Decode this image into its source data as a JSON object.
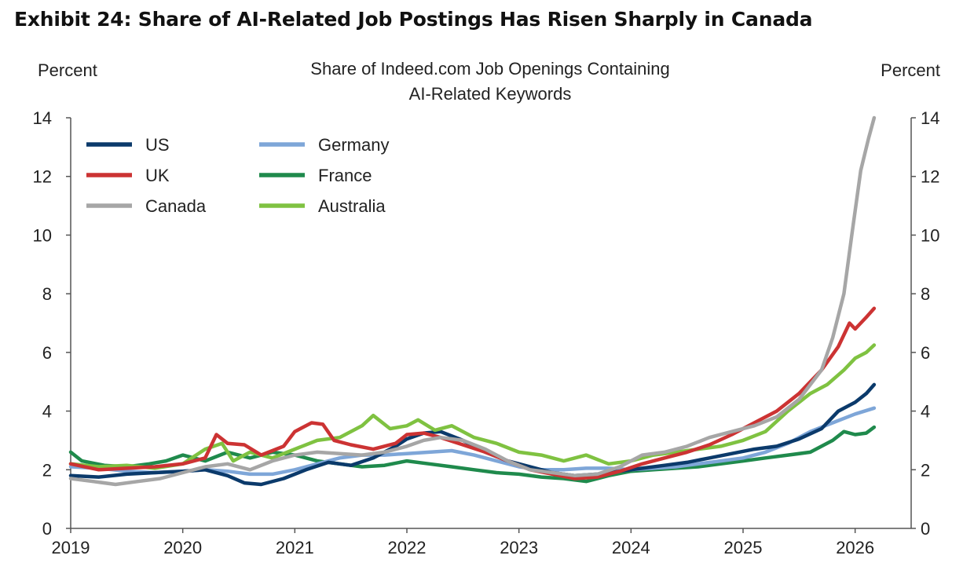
{
  "exhibit_title": "Exhibit 24: Share of AI-Related Job Postings Has Risen Sharply in Canada",
  "chart_data": {
    "type": "line",
    "title": "Share of Indeed.com Job Openings Containing AI-Related Keywords",
    "title_lines": [
      "Share of Indeed.com Job Openings Containing",
      "AI-Related Keywords"
    ],
    "left_ylabel": "Percent",
    "right_ylabel": "Percent",
    "xlabel": "",
    "xlim": [
      2019,
      2026.5
    ],
    "ylim": [
      0,
      14
    ],
    "x_ticks": [
      2019,
      2020,
      2021,
      2022,
      2023,
      2024,
      2025,
      2026
    ],
    "x_tick_labels": [
      "2019",
      "2020",
      "2021",
      "2022",
      "2023",
      "2024",
      "2025",
      "2026"
    ],
    "y_ticks": [
      0,
      2,
      4,
      6,
      8,
      10,
      12,
      14
    ],
    "y_tick_labels": [
      "0",
      "2",
      "4",
      "6",
      "8",
      "10",
      "12",
      "14"
    ],
    "grid": false,
    "legend_position": "top-left",
    "series": [
      {
        "name": "US",
        "color": "#0b3a6b",
        "points": [
          [
            2019.0,
            1.8
          ],
          [
            2019.25,
            1.75
          ],
          [
            2019.5,
            1.85
          ],
          [
            2019.75,
            1.9
          ],
          [
            2020.0,
            1.95
          ],
          [
            2020.2,
            2.0
          ],
          [
            2020.4,
            1.8
          ],
          [
            2020.55,
            1.55
          ],
          [
            2020.7,
            1.5
          ],
          [
            2020.9,
            1.7
          ],
          [
            2021.1,
            2.0
          ],
          [
            2021.3,
            2.25
          ],
          [
            2021.5,
            2.15
          ],
          [
            2021.7,
            2.4
          ],
          [
            2021.9,
            2.8
          ],
          [
            2022.0,
            3.05
          ],
          [
            2022.15,
            3.25
          ],
          [
            2022.3,
            3.3
          ],
          [
            2022.5,
            3.0
          ],
          [
            2022.7,
            2.6
          ],
          [
            2022.9,
            2.3
          ],
          [
            2023.1,
            2.1
          ],
          [
            2023.3,
            1.9
          ],
          [
            2023.5,
            1.8
          ],
          [
            2023.7,
            1.85
          ],
          [
            2023.9,
            1.95
          ],
          [
            2024.1,
            2.05
          ],
          [
            2024.3,
            2.15
          ],
          [
            2024.5,
            2.25
          ],
          [
            2024.7,
            2.4
          ],
          [
            2024.9,
            2.55
          ],
          [
            2025.1,
            2.7
          ],
          [
            2025.3,
            2.8
          ],
          [
            2025.5,
            3.05
          ],
          [
            2025.7,
            3.4
          ],
          [
            2025.85,
            4.0
          ],
          [
            2026.0,
            4.3
          ],
          [
            2026.1,
            4.6
          ],
          [
            2026.17,
            4.9
          ]
        ]
      },
      {
        "name": "UK",
        "color": "#cc3333",
        "points": [
          [
            2019.0,
            2.2
          ],
          [
            2019.25,
            2.0
          ],
          [
            2019.5,
            2.05
          ],
          [
            2019.75,
            2.1
          ],
          [
            2020.0,
            2.2
          ],
          [
            2020.2,
            2.4
          ],
          [
            2020.3,
            3.2
          ],
          [
            2020.4,
            2.9
          ],
          [
            2020.55,
            2.85
          ],
          [
            2020.7,
            2.5
          ],
          [
            2020.9,
            2.8
          ],
          [
            2021.0,
            3.3
          ],
          [
            2021.15,
            3.6
          ],
          [
            2021.25,
            3.55
          ],
          [
            2021.35,
            3.0
          ],
          [
            2021.5,
            2.85
          ],
          [
            2021.7,
            2.7
          ],
          [
            2021.9,
            2.9
          ],
          [
            2022.0,
            3.2
          ],
          [
            2022.15,
            3.25
          ],
          [
            2022.3,
            3.1
          ],
          [
            2022.5,
            2.85
          ],
          [
            2022.7,
            2.6
          ],
          [
            2022.9,
            2.3
          ],
          [
            2023.1,
            2.0
          ],
          [
            2023.3,
            1.85
          ],
          [
            2023.5,
            1.7
          ],
          [
            2023.7,
            1.75
          ],
          [
            2023.9,
            1.95
          ],
          [
            2024.1,
            2.2
          ],
          [
            2024.3,
            2.4
          ],
          [
            2024.5,
            2.6
          ],
          [
            2024.7,
            2.85
          ],
          [
            2024.9,
            3.2
          ],
          [
            2025.1,
            3.6
          ],
          [
            2025.3,
            4.0
          ],
          [
            2025.5,
            4.6
          ],
          [
            2025.7,
            5.4
          ],
          [
            2025.85,
            6.2
          ],
          [
            2025.95,
            7.0
          ],
          [
            2026.0,
            6.8
          ],
          [
            2026.1,
            7.2
          ],
          [
            2026.17,
            7.5
          ]
        ]
      },
      {
        "name": "Canada",
        "color": "#a6a6a6",
        "points": [
          [
            2019.0,
            1.7
          ],
          [
            2019.2,
            1.6
          ],
          [
            2019.4,
            1.5
          ],
          [
            2019.6,
            1.6
          ],
          [
            2019.8,
            1.7
          ],
          [
            2020.0,
            1.9
          ],
          [
            2020.2,
            2.1
          ],
          [
            2020.4,
            2.2
          ],
          [
            2020.6,
            2.0
          ],
          [
            2020.8,
            2.3
          ],
          [
            2021.0,
            2.5
          ],
          [
            2021.2,
            2.6
          ],
          [
            2021.4,
            2.55
          ],
          [
            2021.6,
            2.5
          ],
          [
            2021.8,
            2.6
          ],
          [
            2022.0,
            2.8
          ],
          [
            2022.15,
            3.0
          ],
          [
            2022.3,
            3.1
          ],
          [
            2022.5,
            3.0
          ],
          [
            2022.7,
            2.7
          ],
          [
            2022.9,
            2.3
          ],
          [
            2023.1,
            2.0
          ],
          [
            2023.3,
            1.9
          ],
          [
            2023.5,
            1.8
          ],
          [
            2023.7,
            1.85
          ],
          [
            2023.9,
            2.1
          ],
          [
            2024.1,
            2.5
          ],
          [
            2024.3,
            2.6
          ],
          [
            2024.5,
            2.8
          ],
          [
            2024.7,
            3.1
          ],
          [
            2024.9,
            3.3
          ],
          [
            2025.1,
            3.5
          ],
          [
            2025.3,
            3.8
          ],
          [
            2025.5,
            4.4
          ],
          [
            2025.7,
            5.4
          ],
          [
            2025.8,
            6.5
          ],
          [
            2025.9,
            8.0
          ],
          [
            2025.97,
            10.0
          ],
          [
            2026.05,
            12.2
          ],
          [
            2026.12,
            13.3
          ],
          [
            2026.17,
            14.0
          ]
        ]
      },
      {
        "name": "Germany",
        "color": "#7ea6d8",
        "points": [
          [
            2019.0,
            2.1
          ],
          [
            2019.25,
            2.05
          ],
          [
            2019.5,
            1.95
          ],
          [
            2019.75,
            1.9
          ],
          [
            2020.0,
            1.95
          ],
          [
            2020.2,
            2.0
          ],
          [
            2020.4,
            1.95
          ],
          [
            2020.6,
            1.85
          ],
          [
            2020.8,
            1.85
          ],
          [
            2021.0,
            2.0
          ],
          [
            2021.2,
            2.2
          ],
          [
            2021.4,
            2.4
          ],
          [
            2021.6,
            2.5
          ],
          [
            2021.8,
            2.5
          ],
          [
            2022.0,
            2.55
          ],
          [
            2022.2,
            2.6
          ],
          [
            2022.4,
            2.65
          ],
          [
            2022.6,
            2.5
          ],
          [
            2022.8,
            2.3
          ],
          [
            2023.0,
            2.1
          ],
          [
            2023.2,
            2.0
          ],
          [
            2023.4,
            2.0
          ],
          [
            2023.6,
            2.05
          ],
          [
            2023.8,
            2.05
          ],
          [
            2024.0,
            2.0
          ],
          [
            2024.2,
            2.05
          ],
          [
            2024.4,
            2.1
          ],
          [
            2024.6,
            2.2
          ],
          [
            2024.8,
            2.3
          ],
          [
            2025.0,
            2.4
          ],
          [
            2025.2,
            2.6
          ],
          [
            2025.4,
            2.9
          ],
          [
            2025.6,
            3.3
          ],
          [
            2025.8,
            3.6
          ],
          [
            2026.0,
            3.9
          ],
          [
            2026.17,
            4.1
          ]
        ]
      },
      {
        "name": "France",
        "color": "#1f8a4c",
        "points": [
          [
            2019.0,
            2.6
          ],
          [
            2019.1,
            2.3
          ],
          [
            2019.3,
            2.15
          ],
          [
            2019.5,
            2.1
          ],
          [
            2019.7,
            2.2
          ],
          [
            2019.85,
            2.3
          ],
          [
            2020.0,
            2.5
          ],
          [
            2020.2,
            2.3
          ],
          [
            2020.4,
            2.6
          ],
          [
            2020.6,
            2.4
          ],
          [
            2020.8,
            2.6
          ],
          [
            2021.0,
            2.5
          ],
          [
            2021.2,
            2.3
          ],
          [
            2021.4,
            2.2
          ],
          [
            2021.6,
            2.1
          ],
          [
            2021.8,
            2.15
          ],
          [
            2022.0,
            2.3
          ],
          [
            2022.2,
            2.2
          ],
          [
            2022.4,
            2.1
          ],
          [
            2022.6,
            2.0
          ],
          [
            2022.8,
            1.9
          ],
          [
            2023.0,
            1.85
          ],
          [
            2023.2,
            1.75
          ],
          [
            2023.4,
            1.7
          ],
          [
            2023.6,
            1.6
          ],
          [
            2023.8,
            1.8
          ],
          [
            2024.0,
            1.95
          ],
          [
            2024.2,
            2.0
          ],
          [
            2024.4,
            2.05
          ],
          [
            2024.6,
            2.1
          ],
          [
            2024.8,
            2.2
          ],
          [
            2025.0,
            2.3
          ],
          [
            2025.2,
            2.4
          ],
          [
            2025.4,
            2.5
          ],
          [
            2025.6,
            2.6
          ],
          [
            2025.8,
            3.0
          ],
          [
            2025.9,
            3.3
          ],
          [
            2026.0,
            3.2
          ],
          [
            2026.1,
            3.25
          ],
          [
            2026.17,
            3.45
          ]
        ]
      },
      {
        "name": "Australia",
        "color": "#7fc241",
        "points": [
          [
            2019.0,
            2.2
          ],
          [
            2019.25,
            2.1
          ],
          [
            2019.5,
            2.15
          ],
          [
            2019.75,
            2.05
          ],
          [
            2020.0,
            2.2
          ],
          [
            2020.2,
            2.7
          ],
          [
            2020.35,
            2.9
          ],
          [
            2020.45,
            2.3
          ],
          [
            2020.6,
            2.6
          ],
          [
            2020.8,
            2.4
          ],
          [
            2021.0,
            2.7
          ],
          [
            2021.2,
            3.0
          ],
          [
            2021.4,
            3.1
          ],
          [
            2021.6,
            3.5
          ],
          [
            2021.7,
            3.85
          ],
          [
            2021.85,
            3.4
          ],
          [
            2022.0,
            3.5
          ],
          [
            2022.1,
            3.7
          ],
          [
            2022.25,
            3.35
          ],
          [
            2022.4,
            3.5
          ],
          [
            2022.6,
            3.1
          ],
          [
            2022.8,
            2.9
          ],
          [
            2023.0,
            2.6
          ],
          [
            2023.2,
            2.5
          ],
          [
            2023.4,
            2.3
          ],
          [
            2023.6,
            2.5
          ],
          [
            2023.8,
            2.2
          ],
          [
            2024.0,
            2.3
          ],
          [
            2024.2,
            2.5
          ],
          [
            2024.4,
            2.6
          ],
          [
            2024.6,
            2.7
          ],
          [
            2024.8,
            2.8
          ],
          [
            2025.0,
            3.0
          ],
          [
            2025.2,
            3.3
          ],
          [
            2025.4,
            4.0
          ],
          [
            2025.6,
            4.6
          ],
          [
            2025.75,
            4.9
          ],
          [
            2025.9,
            5.4
          ],
          [
            2026.0,
            5.8
          ],
          [
            2026.1,
            6.0
          ],
          [
            2026.17,
            6.25
          ]
        ]
      }
    ]
  }
}
